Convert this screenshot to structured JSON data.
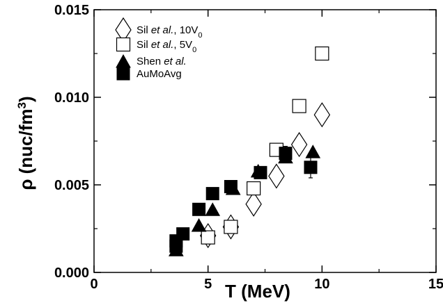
{
  "chart_data": {
    "type": "scatter",
    "xlabel": "T (MeV)",
    "ylabel_prefix": "ρ (nuc/fm",
    "ylabel_sup": "3",
    "ylabel_suffix": ")",
    "xlim": [
      0,
      15
    ],
    "ylim": [
      0,
      0.015
    ],
    "x_ticks": [
      "0",
      "5",
      "10",
      "15"
    ],
    "y_ticks": [
      "0.000",
      "0.005",
      "0.010",
      "0.015"
    ],
    "grid": false,
    "legend_position": "top-left",
    "series": [
      {
        "marker": "diamond-open",
        "legend_parts": [
          {
            "t": "Sil ",
            "s": "normal"
          },
          {
            "t": "et al.",
            "s": "italic"
          },
          {
            "t": ", 10V",
            "s": "normal"
          },
          {
            "t": "0",
            "s": "sub"
          }
        ],
        "points": [
          [
            5.0,
            0.0021
          ],
          [
            6.0,
            0.0026
          ],
          [
            7.0,
            0.0039
          ],
          [
            8.0,
            0.0055
          ],
          [
            9.0,
            0.0073
          ],
          [
            10.0,
            0.009
          ]
        ]
      },
      {
        "marker": "square-open",
        "legend_parts": [
          {
            "t": "Sil ",
            "s": "normal"
          },
          {
            "t": "et al.",
            "s": "italic"
          },
          {
            "t": ", 5V",
            "s": "normal"
          },
          {
            "t": "0",
            "s": "sub"
          }
        ],
        "points": [
          [
            5.0,
            0.002
          ],
          [
            6.0,
            0.0026
          ],
          [
            7.0,
            0.0048
          ],
          [
            8.0,
            0.007
          ],
          [
            9.0,
            0.0095
          ],
          [
            10.0,
            0.0125
          ]
        ]
      },
      {
        "marker": "triangle-filled",
        "legend_parts": [
          {
            "t": "Shen ",
            "s": "normal"
          },
          {
            "t": "et al.",
            "s": "italic"
          }
        ],
        "points": [
          [
            3.6,
            0.0013
          ],
          [
            4.6,
            0.0027
          ],
          [
            5.2,
            0.0036
          ],
          [
            6.1,
            0.0048
          ],
          [
            7.2,
            0.0058
          ],
          [
            8.4,
            0.0066
          ],
          [
            9.6,
            0.0069
          ]
        ]
      },
      {
        "marker": "square-filled",
        "legend_parts": [
          {
            "t": "AuMoAvg",
            "s": "normal"
          }
        ],
        "points": [
          [
            3.6,
            0.0015
          ],
          [
            3.6,
            0.0018
          ],
          [
            3.9,
            0.0022
          ],
          [
            4.6,
            0.0036
          ],
          [
            5.2,
            0.0045
          ],
          [
            6.0,
            0.0049
          ],
          [
            7.3,
            0.0057
          ],
          [
            8.4,
            0.0068
          ],
          [
            9.5,
            0.006
          ]
        ],
        "errors": [
          0.0001,
          0.0001,
          0.0001,
          0.0001,
          0.0002,
          0.0002,
          0.0002,
          0.0004,
          0.0006
        ]
      }
    ]
  }
}
